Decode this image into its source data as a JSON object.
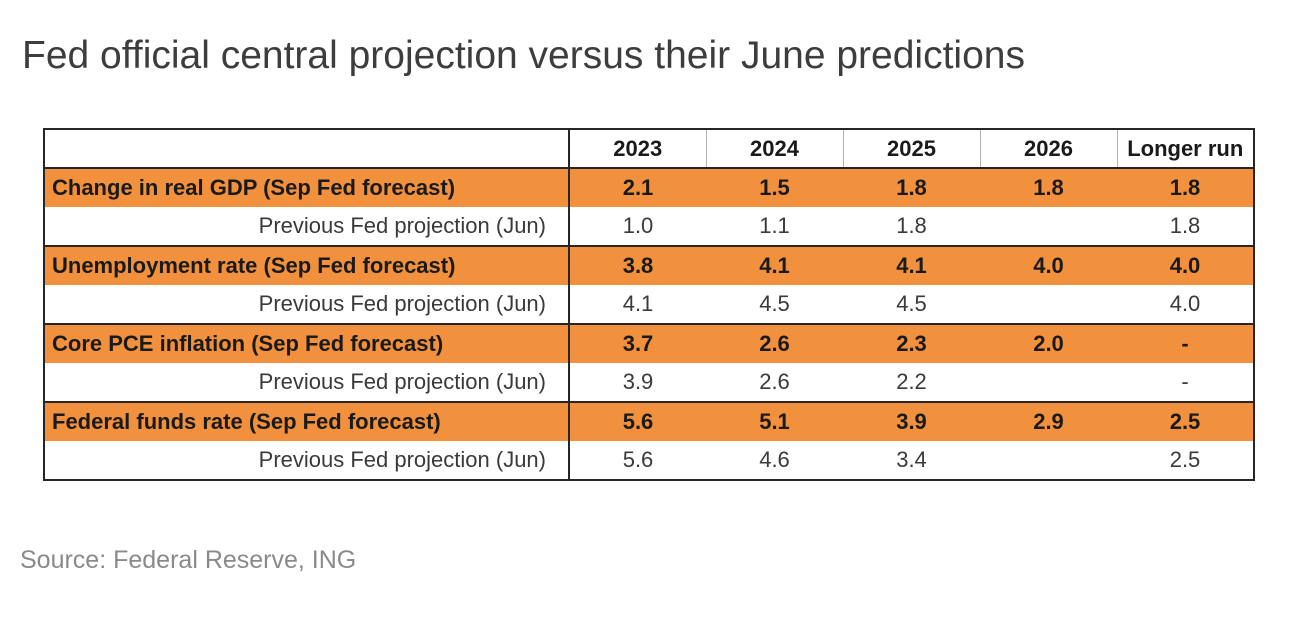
{
  "title": "Fed official central projection versus their June predictions",
  "source": "Source: Federal Reserve, ING",
  "colors": {
    "highlight_row_background": "#f2913d",
    "table_border": "#262626",
    "header_divider": "#b3b3b3",
    "title_text": "#3d3d3d",
    "source_text": "#8a8a8a"
  },
  "table": {
    "columns": [
      "2023",
      "2024",
      "2025",
      "2026",
      "Longer run"
    ],
    "rows": [
      {
        "label": "Change in real GDP (Sep Fed forecast)",
        "type": "forecast",
        "values": [
          "2.1",
          "1.5",
          "1.8",
          "1.8",
          "1.8"
        ]
      },
      {
        "label": "Previous Fed projection (Jun)",
        "type": "previous",
        "values": [
          "1.0",
          "1.1",
          "1.8",
          "",
          "1.8"
        ]
      },
      {
        "label": "Unemployment rate (Sep Fed forecast)",
        "type": "forecast",
        "values": [
          "3.8",
          "4.1",
          "4.1",
          "4.0",
          "4.0"
        ]
      },
      {
        "label": "Previous Fed projection (Jun)",
        "type": "previous",
        "values": [
          "4.1",
          "4.5",
          "4.5",
          "",
          "4.0"
        ]
      },
      {
        "label": "Core PCE inflation (Sep Fed forecast)",
        "type": "forecast",
        "values": [
          "3.7",
          "2.6",
          "2.3",
          "2.0",
          "-"
        ]
      },
      {
        "label": "Previous Fed projection (Jun)",
        "type": "previous",
        "values": [
          "3.9",
          "2.6",
          "2.2",
          "",
          "-"
        ]
      },
      {
        "label": "Federal funds rate (Sep Fed forecast)",
        "type": "forecast",
        "values": [
          "5.6",
          "5.1",
          "3.9",
          "2.9",
          "2.5"
        ]
      },
      {
        "label": "Previous Fed projection (Jun)",
        "type": "previous",
        "values": [
          "5.6",
          "4.6",
          "3.4",
          "",
          "2.5"
        ]
      }
    ]
  },
  "chart_data": {
    "type": "table",
    "title": "Fed official central projection versus their June predictions",
    "columns": [
      "2023",
      "2024",
      "2025",
      "2026",
      "Longer run"
    ],
    "rows": [
      {
        "label": "Change in real GDP (Sep Fed forecast)",
        "highlighted": true,
        "values": [
          2.1,
          1.5,
          1.8,
          1.8,
          1.8
        ]
      },
      {
        "label": "Previous Fed projection (Jun)",
        "highlighted": false,
        "values": [
          1.0,
          1.1,
          1.8,
          null,
          1.8
        ]
      },
      {
        "label": "Unemployment rate (Sep Fed forecast)",
        "highlighted": true,
        "values": [
          3.8,
          4.1,
          4.1,
          4.0,
          4.0
        ]
      },
      {
        "label": "Previous Fed projection (Jun)",
        "highlighted": false,
        "values": [
          4.1,
          4.5,
          4.5,
          null,
          4.0
        ]
      },
      {
        "label": "Core PCE inflation (Sep Fed forecast)",
        "highlighted": true,
        "values": [
          3.7,
          2.6,
          2.3,
          2.0,
          null
        ]
      },
      {
        "label": "Previous Fed projection (Jun)",
        "highlighted": false,
        "values": [
          3.9,
          2.6,
          2.2,
          null,
          null
        ]
      },
      {
        "label": "Federal funds rate (Sep Fed forecast)",
        "highlighted": true,
        "values": [
          5.6,
          5.1,
          3.9,
          2.9,
          2.5
        ]
      },
      {
        "label": "Previous Fed projection (Jun)",
        "highlighted": false,
        "values": [
          5.6,
          4.6,
          3.4,
          null,
          2.5
        ]
      }
    ],
    "source": "Source: Federal Reserve, ING"
  }
}
